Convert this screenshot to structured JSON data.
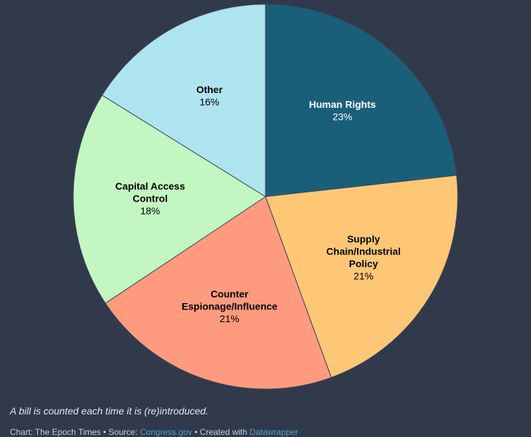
{
  "chart_data": {
    "type": "pie",
    "title": "",
    "start_angle_deg": 0,
    "direction": "clockwise",
    "slices": [
      {
        "label_lines": [
          "Human Rights"
        ],
        "value": 23,
        "value_label": "23%",
        "color": "#1a5f7a",
        "label_color": "#ffffff"
      },
      {
        "label_lines": [
          "Supply",
          "Chain/Industrial",
          "Policy"
        ],
        "value": 21,
        "value_label": "21%",
        "color": "#fdc776",
        "label_color": "#000000"
      },
      {
        "label_lines": [
          "Counter",
          "Espionage/Influence"
        ],
        "value": 21,
        "value_label": "21%",
        "color": "#fe9b7f",
        "label_color": "#000000"
      },
      {
        "label_lines": [
          "Capital Access",
          "Control"
        ],
        "value": 18,
        "value_label": "18%",
        "color": "#c3f7c1",
        "label_color": "#000000"
      },
      {
        "label_lines": [
          "Other"
        ],
        "value": 16,
        "value_label": "16%",
        "color": "#aee4ef",
        "label_color": "#000000"
      }
    ]
  },
  "footer": {
    "note": "A bill is counted each time it is (re)introduced.",
    "credit_prefix": "Chart: The Epoch Times • Source:",
    "source_link": "Congress.gov",
    "created_with_text": "• Created with",
    "tool_link": "Datawrapper"
  }
}
